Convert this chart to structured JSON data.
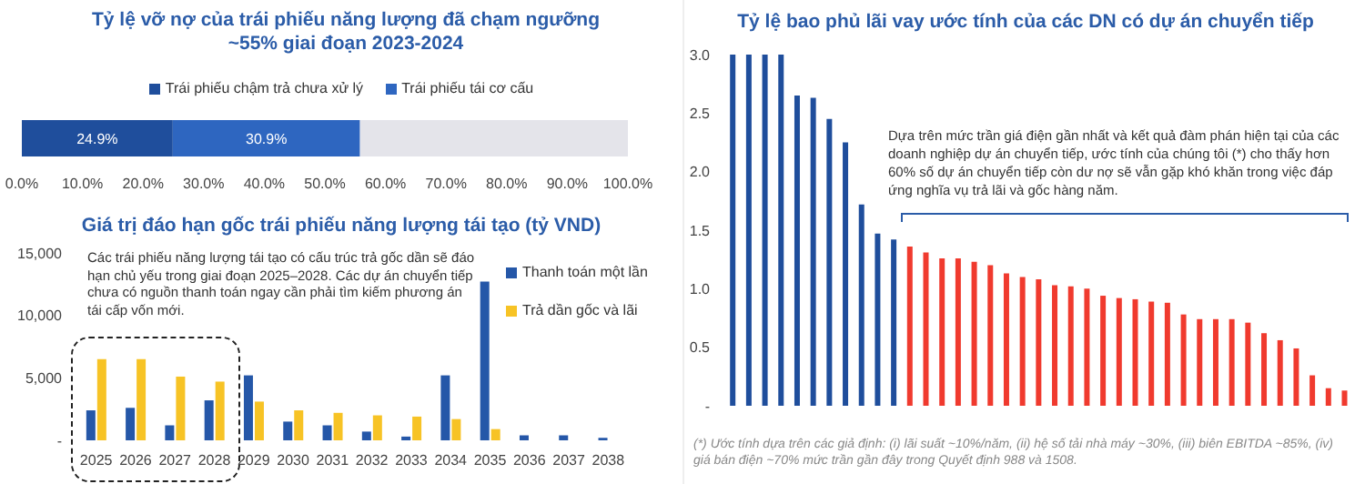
{
  "chart_data": [
    {
      "type": "bar",
      "orientation": "horizontal",
      "stacked": true,
      "title": "Tỷ lệ vỡ nợ của trái phiếu năng lượng đã chạm ngưỡng ~55% giai đoạn 2023-2024",
      "categories": [
        null
      ],
      "series": [
        {
          "name": "Trái phiếu chậm trả chưa xử lý",
          "color": "#1f4e9c",
          "values": [
            24.9
          ],
          "value_labels": [
            "24.9%"
          ]
        },
        {
          "name": "Trái phiếu tái cơ cấu",
          "color": "#2e66c0",
          "values": [
            30.9
          ],
          "value_labels": [
            "30.9%"
          ]
        },
        {
          "color": "#e4e4ea",
          "values": [
            44.2
          ]
        }
      ],
      "xlim": [
        0,
        100
      ],
      "xticks": [
        {
          "value": 0,
          "label": "0.0%"
        },
        {
          "value": 10,
          "label": "10.0%"
        },
        {
          "value": 20,
          "label": "20.0%"
        },
        {
          "value": 30,
          "label": "30.0%"
        },
        {
          "value": 40,
          "label": "40.0%"
        },
        {
          "value": 50,
          "label": "50.0%"
        },
        {
          "value": 60,
          "label": "60.0%"
        },
        {
          "value": 70,
          "label": "70.0%"
        },
        {
          "value": 80,
          "label": "80.0%"
        },
        {
          "value": 90,
          "label": "90.0%"
        },
        {
          "value": 100,
          "label": "100.0%"
        }
      ],
      "legend": "top"
    },
    {
      "type": "bar",
      "title": "Giá trị đáo hạn gốc trái phiếu năng lượng tái tạo (tỷ VND)",
      "categories": [
        "2025",
        "2026",
        "2027",
        "2028",
        "2029",
        "2030",
        "2031",
        "2032",
        "2033",
        "2034",
        "2035",
        "2036",
        "2037",
        "2038"
      ],
      "series": [
        {
          "name": "Thanh toán một lần",
          "color": "#2557a8",
          "values": [
            2400,
            2600,
            1200,
            3200,
            5200,
            1500,
            1200,
            700,
            300,
            5200,
            12700,
            400,
            400,
            200
          ]
        },
        {
          "name": "Trả dần gốc và lãi",
          "color": "#f7c325",
          "values": [
            6500,
            6500,
            5100,
            4700,
            3100,
            2400,
            2200,
            2000,
            1900,
            1700,
            900,
            null,
            null,
            null
          ]
        }
      ],
      "ylim": [
        0,
        15000
      ],
      "yticks": [
        {
          "value": 0,
          "label": "-"
        },
        {
          "value": 5000,
          "label": "5,000"
        },
        {
          "value": 10000,
          "label": "10,000"
        },
        {
          "value": 15000,
          "label": "15,000"
        }
      ],
      "legend": "top right",
      "annotations": [
        "Các trái phiếu năng lượng tái tạo có cấu trúc trả gốc dần sẽ đáo hạn chủ yếu trong giai đoạn 2025–2028. Các dự án chuyển tiếp chưa có nguồn thanh toán ngay cần phải tìm kiếm phương án tái cấp vốn mới."
      ]
    },
    {
      "type": "bar",
      "title": "Tỷ lệ bao phủ lãi vay ước tính của các DN có dự án chuyển tiếp",
      "categories": [
        null,
        null,
        null,
        null,
        null,
        null,
        null,
        null,
        null,
        null,
        null,
        null,
        null,
        null,
        null,
        null,
        null,
        null,
        null,
        null,
        null,
        null,
        null,
        null,
        null,
        null,
        null,
        null,
        null,
        null,
        null,
        null,
        null,
        null,
        null,
        null,
        null,
        null,
        null
      ],
      "values": [
        3.0,
        3.0,
        3.0,
        3.0,
        2.65,
        2.63,
        2.45,
        2.25,
        1.72,
        1.47,
        1.42,
        1.36,
        1.31,
        1.26,
        1.26,
        1.23,
        1.2,
        1.13,
        1.1,
        1.08,
        1.03,
        1.02,
        1.0,
        0.94,
        0.92,
        0.91,
        0.89,
        0.88,
        0.78,
        0.74,
        0.74,
        0.74,
        0.71,
        0.62,
        0.56,
        0.49,
        0.26,
        0.15,
        0.13
      ],
      "colors": [
        "#1f4e9c",
        "#1f4e9c",
        "#1f4e9c",
        "#1f4e9c",
        "#1f4e9c",
        "#1f4e9c",
        "#1f4e9c",
        "#1f4e9c",
        "#1f4e9c",
        "#1f4e9c",
        "#1f4e9c",
        "#f03a2e",
        "#f03a2e",
        "#f03a2e",
        "#f03a2e",
        "#f03a2e",
        "#f03a2e",
        "#f03a2e",
        "#f03a2e",
        "#f03a2e",
        "#f03a2e",
        "#f03a2e",
        "#f03a2e",
        "#f03a2e",
        "#f03a2e",
        "#f03a2e",
        "#f03a2e",
        "#f03a2e",
        "#f03a2e",
        "#f03a2e",
        "#f03a2e",
        "#f03a2e",
        "#f03a2e",
        "#f03a2e",
        "#f03a2e",
        "#f03a2e",
        "#f03a2e",
        "#f03a2e",
        "#f03a2e"
      ],
      "ylim": [
        0,
        3
      ],
      "yticks": [
        {
          "value": 0,
          "label": "-"
        },
        {
          "value": 0.5,
          "label": "0.5"
        },
        {
          "value": 1,
          "label": "1.0"
        },
        {
          "value": 1.5,
          "label": "1.5"
        },
        {
          "value": 2,
          "label": "2.0"
        },
        {
          "value": 2.5,
          "label": "2.5"
        },
        {
          "value": 3,
          "label": "3.0"
        }
      ],
      "annotations": [
        "Dựa trên mức trần giá điện gần nhất và kết quả đàm phán hiện tại của các doanh nghiệp dự án chuyển tiếp, ước tính của chúng tôi (*) cho thấy hơn 60% số dự án chuyển tiếp còn dư nợ sẽ vẫn gặp khó khăn trong việc đáp ứng nghĩa vụ trả lãi và gốc hàng năm.",
        "(*) Ước tính dựa trên các giả định: (i) lãi suất ~10%/năm, (ii) hệ số tải nhà máy ~30%, (iii) biên EBITDA ~85%, (iv) giá bán điện ~70% mức trần gần đây trong Quyết định 988 và 1508."
      ]
    }
  ]
}
